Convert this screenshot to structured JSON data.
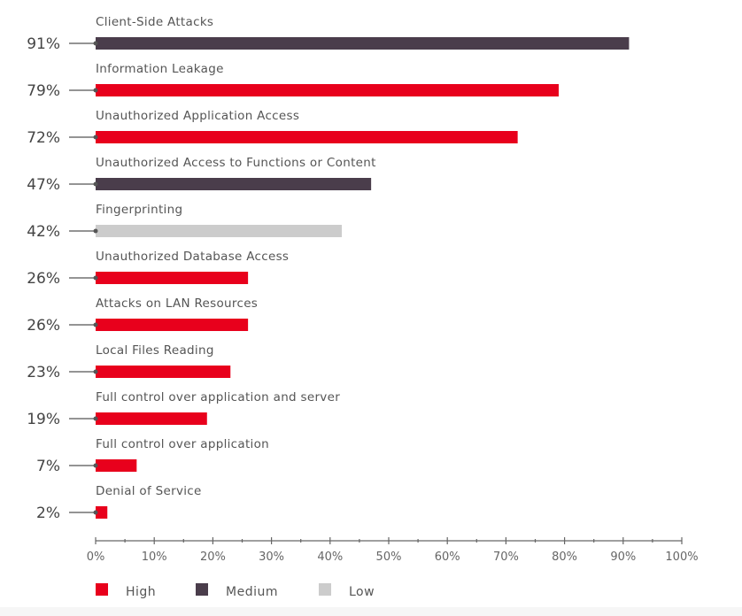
{
  "chart_data": {
    "type": "bar",
    "orientation": "horizontal",
    "title": "",
    "xlabel": "",
    "ylabel": "",
    "xlim": [
      0,
      100
    ],
    "x_ticks": [
      "0%",
      "10%",
      "20%",
      "30%",
      "40%",
      "50%",
      "60%",
      "70%",
      "80%",
      "90%",
      "100%"
    ],
    "categories": [
      "Client-Side Attacks",
      "Information Leakage",
      "Unauthorized Application Access",
      "Unauthorized Access to Functions or Content",
      "Fingerprinting",
      "Unauthorized Database Access",
      "Attacks on LAN Resources",
      "Local Files Reading",
      "Full control over application and server",
      "Full control over application",
      "Denial of Service"
    ],
    "values": [
      91,
      79,
      72,
      47,
      42,
      26,
      26,
      23,
      19,
      7,
      2
    ],
    "value_labels": [
      "91%",
      "79%",
      "72%",
      "47%",
      "42%",
      "26%",
      "26%",
      "23%",
      "19%",
      "7%",
      "2%"
    ],
    "severity": [
      "Medium",
      "High",
      "High",
      "Medium",
      "Low",
      "High",
      "High",
      "High",
      "High",
      "High",
      "High"
    ],
    "legend": [
      {
        "label": "High",
        "color": "#e8001c"
      },
      {
        "label": "Medium",
        "color": "#4a3d4b"
      },
      {
        "label": "Low",
        "color": "#cccccc"
      }
    ],
    "legend_position": "bottom-left",
    "grid": false
  }
}
